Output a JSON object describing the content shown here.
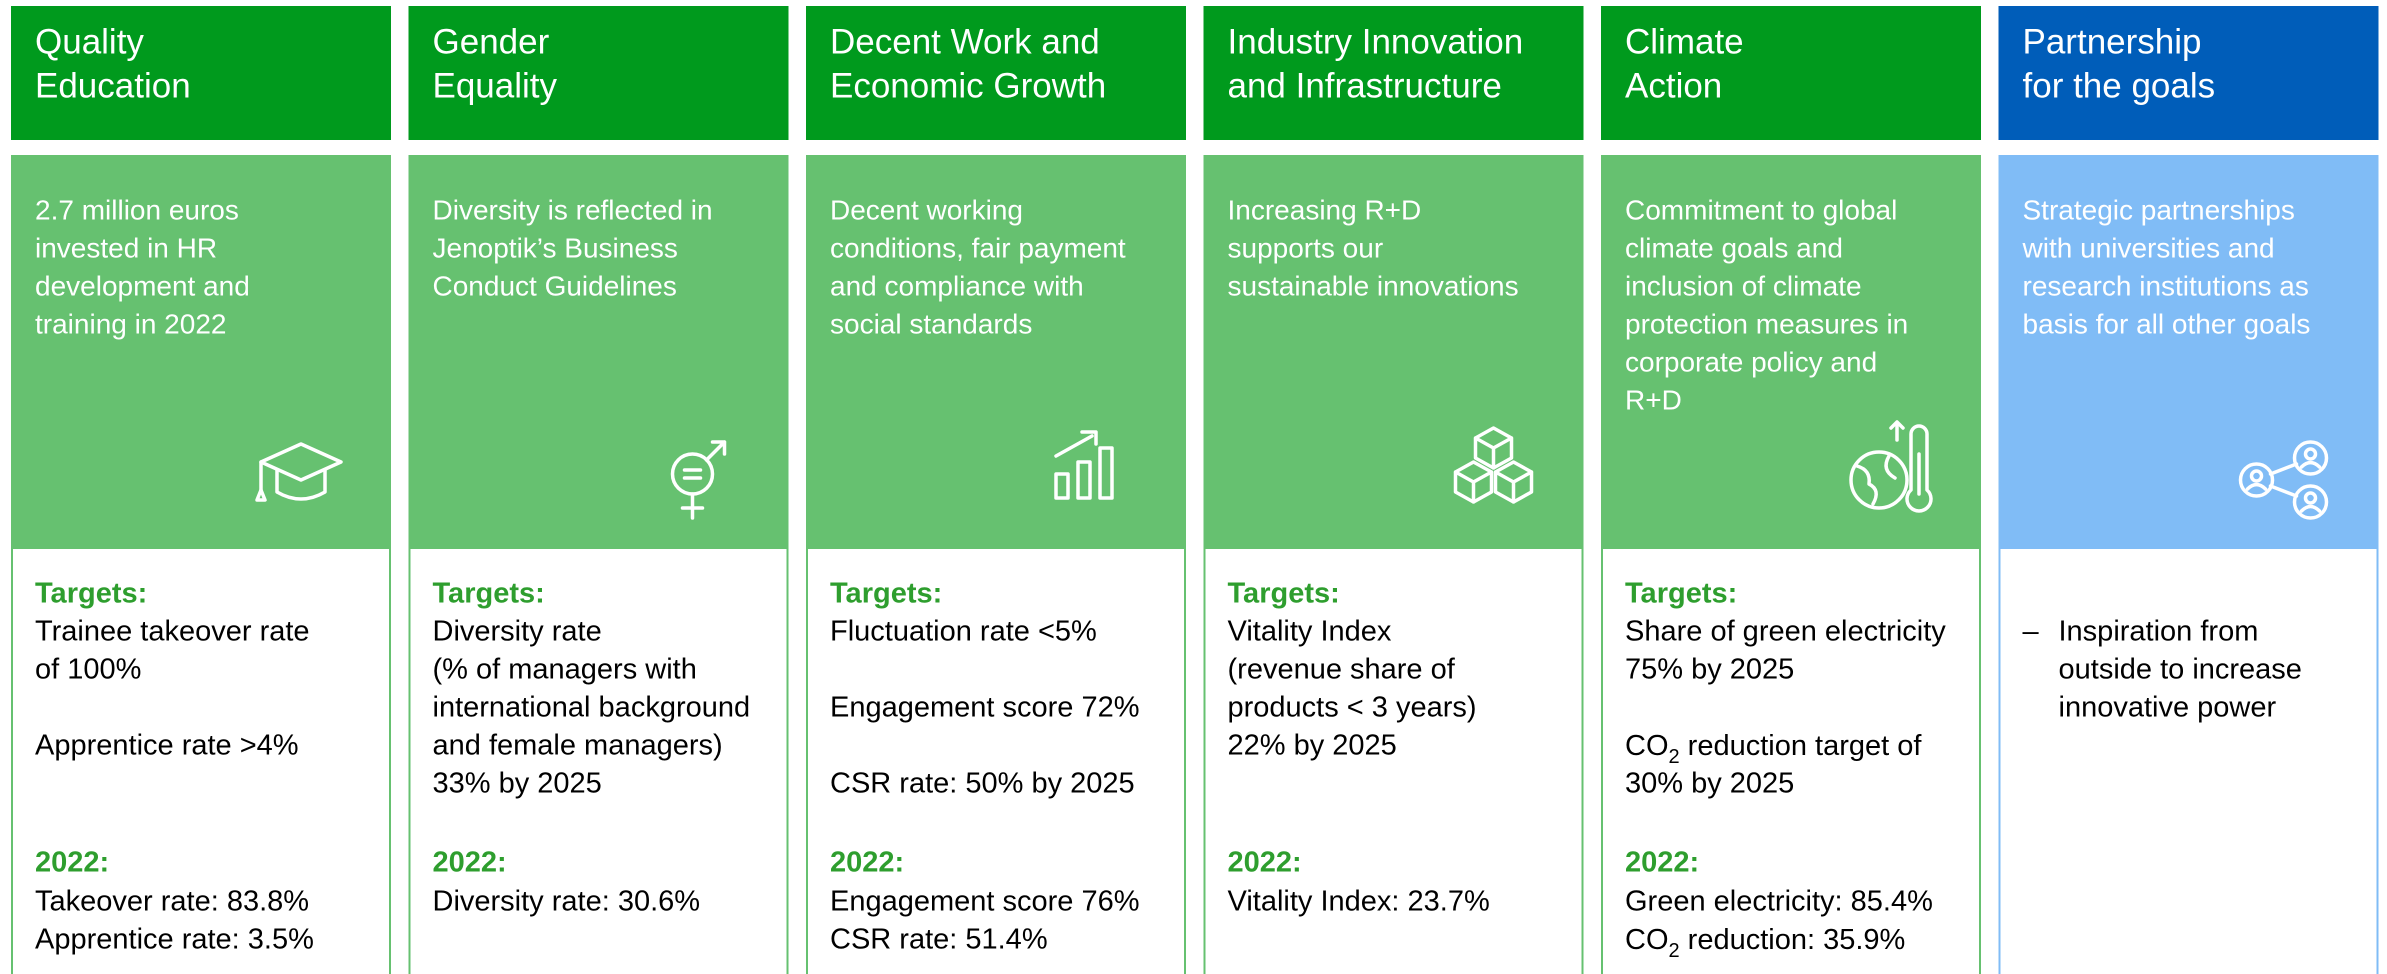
{
  "columns": [
    {
      "title": [
        "Quality",
        "Education"
      ],
      "description": [
        "2.7 million euros",
        "invested in HR",
        "development and",
        "training in 2022"
      ],
      "targets_label": "Targets:",
      "targets": [
        [
          "Trainee takeover rate",
          "of 100%"
        ],
        [
          "Apprentice rate >4%"
        ]
      ],
      "year_label": "2022:",
      "results": [
        "Takeover rate: 83.8%",
        "Apprentice rate: 3.5%"
      ]
    },
    {
      "title": [
        "Gender",
        "Equality"
      ],
      "description": [
        "Diversity is reflected in",
        "Jenoptik’s Business",
        "Conduct Guidelines"
      ],
      "targets_label": "Targets:",
      "targets": [
        [
          "Diversity rate",
          "(% of managers with",
          "international background",
          "and female managers)",
          " 33% by 2025"
        ]
      ],
      "year_label": "2022:",
      "results": [
        "Diversity rate: 30.6%"
      ]
    },
    {
      "title": [
        "Decent Work and",
        "Economic Growth"
      ],
      "description": [
        "Decent working",
        "conditions, fair payment",
        "and compliance with",
        "social standards"
      ],
      "targets_label": "Targets:",
      "targets": [
        [
          "Fluctuation rate <5%"
        ],
        [
          "Engagement score 72%"
        ],
        [
          "CSR rate: 50% by 2025"
        ]
      ],
      "year_label": "2022:",
      "results": [
        "Engagement score 76%",
        "CSR rate: 51.4%"
      ]
    },
    {
      "title": [
        "Industry Innovation",
        "and Infrastructure"
      ],
      "description": [
        "Increasing R+D",
        "supports our",
        "sustainable innovations"
      ],
      "targets_label": "Targets:",
      "targets": [
        [
          "Vitality Index",
          "(revenue share of",
          "products < 3 years)",
          " 22% by 2025"
        ]
      ],
      "year_label": "2022:",
      "results": [
        "Vitality Index: 23.7%"
      ]
    },
    {
      "title": [
        "Climate",
        "Action"
      ],
      "description": [
        "Commitment to global",
        "climate goals and",
        "inclusion of climate",
        "protection measures in",
        "corporate policy and",
        "R+D"
      ],
      "targets_label": "Targets:",
      "targets": [
        [
          "Share of green electricity",
          "75% by 2025"
        ],
        [
          {
            "base": "CO",
            "sub": "2",
            "rest": " reduction target of"
          },
          "30% by 2025"
        ]
      ],
      "year_label": "2022:",
      "results": [
        "Green electricity: 85.4%",
        {
          "base": "CO",
          "sub": "2",
          "rest": " reduction: 35.9%"
        }
      ]
    },
    {
      "title": [
        "Partnership",
        "for the goals"
      ],
      "description": [
        "Strategic partnerships",
        "with universities and",
        "research institutions as",
        "basis for all other goals"
      ],
      "bullet": "–",
      "bullet_lines": [
        "Inspiration from",
        "outside to increase",
        "innovative power"
      ]
    }
  ]
}
